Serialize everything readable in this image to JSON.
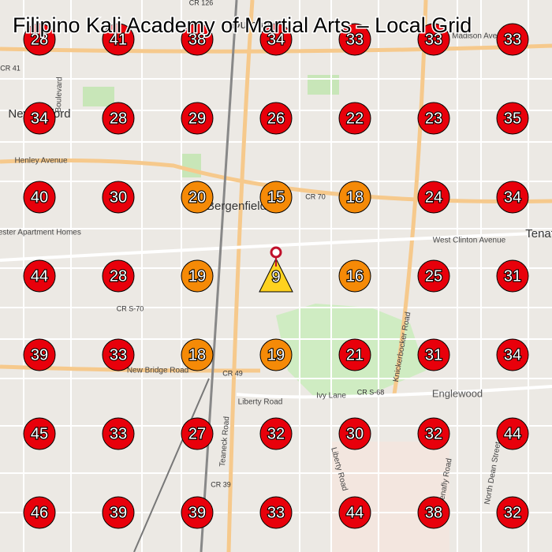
{
  "header": {
    "title": "Filipino Kali Academy of Martial Arts – Local Grid"
  },
  "map": {
    "labels": [
      "Dumont",
      "New Milford",
      "Bergenfield",
      "Tenafly",
      "Englewood",
      "Henley Avenue",
      "CR 70",
      "West Clinton Avenue",
      "New Bridge Road",
      "Liberty Road",
      "Ivy Lane",
      "Knickerbocker Road",
      "Teaneck Road",
      "Madison Avenue",
      "CR 39",
      "CR 49",
      "CR S-68",
      "CR S-70",
      "CR 41",
      "CR 126",
      "Boulevard",
      "Brookchester Apartment Homes",
      "Liberty Road",
      "Tenafly Road",
      "North Dean Street"
    ]
  },
  "grid": {
    "rows": [
      [
        28,
        41,
        38,
        34,
        33,
        33,
        33
      ],
      [
        34,
        28,
        29,
        26,
        22,
        23,
        35
      ],
      [
        40,
        30,
        20,
        15,
        18,
        24,
        34
      ],
      [
        44,
        28,
        19,
        9,
        16,
        25,
        31
      ],
      [
        39,
        33,
        18,
        19,
        21,
        31,
        34
      ],
      [
        45,
        33,
        27,
        32,
        30,
        32,
        44
      ],
      [
        46,
        39,
        39,
        33,
        44,
        38,
        32
      ]
    ]
  }
}
